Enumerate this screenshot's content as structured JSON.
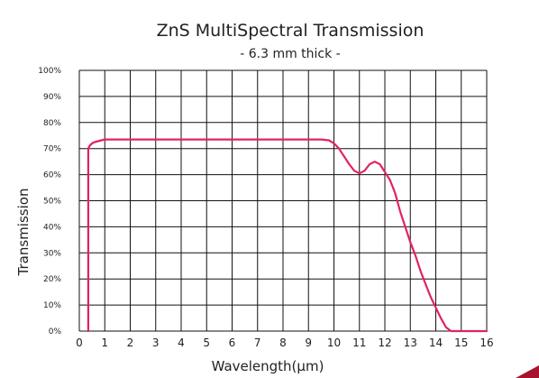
{
  "chart_data": {
    "type": "line",
    "title": "ZnS MultiSpectral Transmission",
    "subtitle": "- 6.3 mm thick -",
    "xlabel": "Wavelength(μm)",
    "ylabel": "Transmission",
    "xlim": [
      0,
      16
    ],
    "ylim": [
      0,
      100
    ],
    "x_ticks": [
      "0",
      "1",
      "2",
      "3",
      "4",
      "5",
      "6",
      "7",
      "8",
      "9",
      "10",
      "11",
      "12",
      "13",
      "14",
      "15",
      "16"
    ],
    "y_ticks": [
      "0%",
      "10%",
      "20%",
      "30%",
      "40%",
      "50%",
      "60%",
      "70%",
      "80%",
      "90%",
      "100%"
    ],
    "grid": true,
    "line_color": "#e0245e",
    "series": [
      {
        "x": [
          0.35,
          0.35,
          0.4,
          0.5,
          0.6,
          0.8,
          1.0,
          1.5,
          2,
          3,
          4,
          5,
          6,
          7,
          8,
          9,
          9.5,
          9.8,
          10.0,
          10.2,
          10.4,
          10.6,
          10.8,
          11.0,
          11.2,
          11.4,
          11.6,
          11.8,
          12.0,
          12.2,
          12.4,
          12.6,
          12.8,
          13.0,
          13.2,
          13.4,
          13.6,
          13.8,
          14.0,
          14.2,
          14.4,
          14.6,
          15,
          16
        ],
        "y": [
          0,
          70,
          71,
          72,
          72.5,
          73,
          73.5,
          73.5,
          73.5,
          73.5,
          73.5,
          73.5,
          73.5,
          73.5,
          73.5,
          73.5,
          73.5,
          73.2,
          72,
          70,
          67,
          64,
          61.5,
          60.5,
          61.5,
          64,
          65,
          64,
          61,
          58,
          53,
          46,
          40,
          34,
          29,
          23,
          18,
          13,
          9,
          5,
          1.5,
          0,
          0,
          0
        ]
      }
    ]
  }
}
